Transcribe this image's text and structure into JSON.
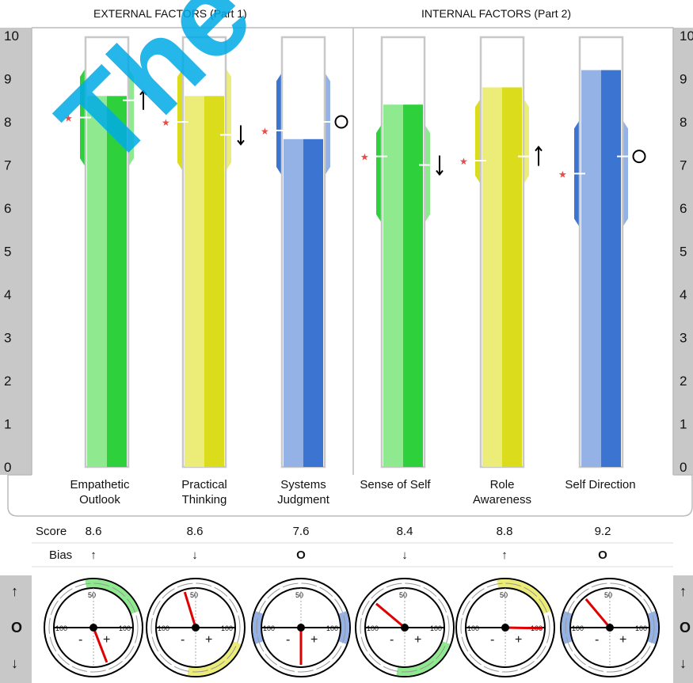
{
  "chart_data": {
    "type": "bar",
    "group_titles": [
      "EXTERNAL FACTORS (Part 1)",
      "INTERNAL FACTORS (Part 2)"
    ],
    "categories": [
      [
        "Empathetic",
        "Outlook"
      ],
      [
        "Practical",
        "Thinking"
      ],
      [
        "Systems",
        "Judgment"
      ],
      [
        "Sense of Self",
        ""
      ],
      [
        "Role",
        "Awareness"
      ],
      [
        "Self Direction",
        ""
      ]
    ],
    "values": [
      8.6,
      8.6,
      7.6,
      8.4,
      8.8,
      9.2
    ],
    "range_low": [
      6.9,
      6.8,
      6.7,
      5.6,
      6.5,
      5.5
    ],
    "range_high": [
      9.3,
      9.3,
      9.2,
      8.0,
      8.6,
      8.1
    ],
    "star_marks": [
      8.1,
      8.0,
      7.8,
      7.2,
      7.1,
      6.8
    ],
    "bias_marks": [
      8.5,
      7.7,
      8.0,
      7.0,
      7.2,
      7.2
    ],
    "bias": [
      "↑",
      "↓",
      "O",
      "↓",
      "↑",
      "O"
    ],
    "ylim": [
      0,
      10
    ],
    "yticks": [
      "0",
      "1",
      "2",
      "3",
      "4",
      "5",
      "6",
      "7",
      "8",
      "9",
      "10"
    ],
    "series_colors": [
      "#2ed13b",
      "#dbdc1b",
      "#3b74d1",
      "#2ed13b",
      "#dbdc1b",
      "#3b74d1"
    ],
    "series_colors_light": [
      "#8fe98f",
      "#ecec78",
      "#95b2e6",
      "#8fe98f",
      "#ecec78",
      "#95b2e6"
    ],
    "gauge_angles_deg": [
      -69,
      107,
      -90,
      140,
      -1,
      130
    ]
  },
  "table": {
    "score_label": "Score",
    "bias_label": "Bias",
    "scores": [
      "8.6",
      "8.6",
      "7.6",
      "8.4",
      "8.8",
      "9.2"
    ],
    "bias": [
      "↑",
      "↓",
      "O",
      "↓",
      "↑",
      "O"
    ]
  },
  "gauge": {
    "top_label": "50",
    "left_label": "100",
    "right_label": "100",
    "minus": "-",
    "plus": "+"
  },
  "side_symbols": [
    "↑",
    "O",
    "↓"
  ],
  "watermark": "The Me"
}
